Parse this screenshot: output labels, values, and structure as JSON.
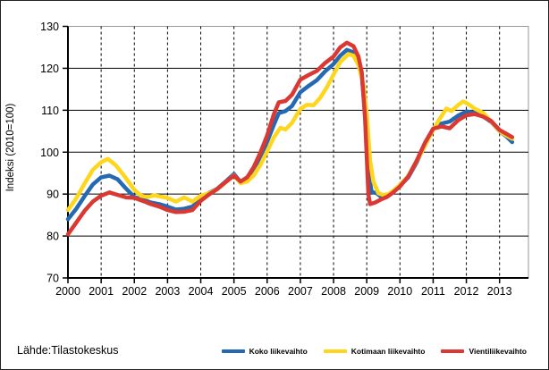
{
  "figure": {
    "source_note": "Lähde:Tilastokeskus"
  },
  "chart_data": {
    "type": "line",
    "title": "",
    "xlabel": "",
    "ylabel": "Indeksi (2010=100)",
    "ylim": [
      70,
      130
    ],
    "ytick_step": 10,
    "xlim": [
      2000,
      2013.87
    ],
    "xticks": [
      2000,
      2001,
      2002,
      2003,
      2004,
      2005,
      2006,
      2007,
      2008,
      2009,
      2010,
      2011,
      2012,
      2013
    ],
    "grid": {
      "horizontal": "solid",
      "vertical": "dashed"
    },
    "legend_position": "bottom-right",
    "series": [
      {
        "name": "Koko liikevaihto",
        "color": "#2569b3",
        "points": [
          [
            2000.0,
            84.0
          ],
          [
            2000.25,
            86.5
          ],
          [
            2000.5,
            89.5
          ],
          [
            2000.75,
            92.3
          ],
          [
            2001.0,
            94.0
          ],
          [
            2001.25,
            94.4
          ],
          [
            2001.5,
            93.5
          ],
          [
            2001.75,
            91.3
          ],
          [
            2002.0,
            89.3
          ],
          [
            2002.25,
            88.7
          ],
          [
            2002.5,
            88.0
          ],
          [
            2002.75,
            87.6
          ],
          [
            2003.0,
            87.0
          ],
          [
            2003.25,
            86.3
          ],
          [
            2003.5,
            86.5
          ],
          [
            2003.75,
            87.0
          ],
          [
            2004.0,
            88.8
          ],
          [
            2004.25,
            90.3
          ],
          [
            2004.5,
            91.3
          ],
          [
            2004.75,
            93.0
          ],
          [
            2005.0,
            94.8
          ],
          [
            2005.2,
            92.8
          ],
          [
            2005.4,
            93.5
          ],
          [
            2005.6,
            95.5
          ],
          [
            2005.8,
            99.0
          ],
          [
            2006.0,
            102.5
          ],
          [
            2006.2,
            106.5
          ],
          [
            2006.35,
            109.3
          ],
          [
            2006.55,
            109.8
          ],
          [
            2006.75,
            111.0
          ],
          [
            2007.0,
            114.3
          ],
          [
            2007.25,
            115.8
          ],
          [
            2007.5,
            117.2
          ],
          [
            2007.75,
            119.3
          ],
          [
            2008.0,
            121.0
          ],
          [
            2008.2,
            123.0
          ],
          [
            2008.4,
            124.4
          ],
          [
            2008.6,
            123.8
          ],
          [
            2008.75,
            121.8
          ],
          [
            2008.85,
            118.5
          ],
          [
            2008.95,
            109.0
          ],
          [
            2009.05,
            95.0
          ],
          [
            2009.15,
            90.5
          ],
          [
            2009.3,
            90.2
          ],
          [
            2009.45,
            89.2
          ],
          [
            2009.6,
            89.4
          ],
          [
            2009.75,
            90.3
          ],
          [
            2010.0,
            92.0
          ],
          [
            2010.25,
            94.0
          ],
          [
            2010.5,
            97.5
          ],
          [
            2010.75,
            101.8
          ],
          [
            2011.0,
            105.5
          ],
          [
            2011.25,
            106.8
          ],
          [
            2011.5,
            107.3
          ],
          [
            2011.75,
            108.7
          ],
          [
            2012.0,
            109.7
          ],
          [
            2012.25,
            109.4
          ],
          [
            2012.5,
            108.6
          ],
          [
            2012.75,
            107.2
          ],
          [
            2013.0,
            105.0
          ],
          [
            2013.2,
            103.8
          ],
          [
            2013.38,
            102.4
          ]
        ]
      },
      {
        "name": "Kotimaan liikevaihto",
        "color": "#fed61e",
        "points": [
          [
            2000.0,
            86.2
          ],
          [
            2000.25,
            89.0
          ],
          [
            2000.5,
            92.5
          ],
          [
            2000.75,
            95.8
          ],
          [
            2001.0,
            97.6
          ],
          [
            2001.2,
            98.4
          ],
          [
            2001.45,
            96.8
          ],
          [
            2001.7,
            94.3
          ],
          [
            2002.0,
            91.0
          ],
          [
            2002.2,
            89.6
          ],
          [
            2002.4,
            89.3
          ],
          [
            2002.6,
            89.7
          ],
          [
            2002.8,
            89.4
          ],
          [
            2003.0,
            89.1
          ],
          [
            2003.25,
            88.2
          ],
          [
            2003.5,
            89.2
          ],
          [
            2003.75,
            88.2
          ],
          [
            2004.0,
            89.6
          ],
          [
            2004.25,
            90.2
          ],
          [
            2004.5,
            91.2
          ],
          [
            2004.75,
            92.8
          ],
          [
            2005.0,
            94.5
          ],
          [
            2005.2,
            92.6
          ],
          [
            2005.4,
            93.0
          ],
          [
            2005.6,
            94.5
          ],
          [
            2005.8,
            97.0
          ],
          [
            2006.0,
            100.2
          ],
          [
            2006.2,
            103.5
          ],
          [
            2006.4,
            105.8
          ],
          [
            2006.55,
            105.4
          ],
          [
            2006.75,
            107.0
          ],
          [
            2007.0,
            110.3
          ],
          [
            2007.2,
            111.3
          ],
          [
            2007.4,
            111.2
          ],
          [
            2007.6,
            113.0
          ],
          [
            2007.8,
            115.5
          ],
          [
            2008.0,
            118.5
          ],
          [
            2008.2,
            121.5
          ],
          [
            2008.45,
            123.4
          ],
          [
            2008.6,
            123.0
          ],
          [
            2008.75,
            120.8
          ],
          [
            2008.9,
            116.0
          ],
          [
            2009.0,
            109.0
          ],
          [
            2009.1,
            98.0
          ],
          [
            2009.2,
            93.0
          ],
          [
            2009.35,
            90.2
          ],
          [
            2009.5,
            89.8
          ],
          [
            2009.65,
            90.0
          ],
          [
            2009.8,
            90.8
          ],
          [
            2010.0,
            92.2
          ],
          [
            2010.25,
            94.3
          ],
          [
            2010.5,
            97.8
          ],
          [
            2010.75,
            101.5
          ],
          [
            2011.0,
            105.3
          ],
          [
            2011.2,
            108.0
          ],
          [
            2011.4,
            110.4
          ],
          [
            2011.55,
            109.8
          ],
          [
            2011.75,
            111.2
          ],
          [
            2011.9,
            112.1
          ],
          [
            2012.05,
            111.5
          ],
          [
            2012.25,
            110.4
          ],
          [
            2012.5,
            109.4
          ],
          [
            2012.75,
            107.3
          ],
          [
            2013.0,
            105.0
          ],
          [
            2013.2,
            104.0
          ],
          [
            2013.38,
            103.2
          ]
        ]
      },
      {
        "name": "Vientiliikevaihto",
        "color": "#da3832",
        "points": [
          [
            2000.0,
            80.4
          ],
          [
            2000.25,
            83.2
          ],
          [
            2000.5,
            86.0
          ],
          [
            2000.75,
            88.2
          ],
          [
            2001.0,
            89.6
          ],
          [
            2001.25,
            90.4
          ],
          [
            2001.5,
            89.8
          ],
          [
            2001.75,
            89.2
          ],
          [
            2002.0,
            89.1
          ],
          [
            2002.25,
            88.4
          ],
          [
            2002.5,
            87.6
          ],
          [
            2002.75,
            87.0
          ],
          [
            2003.0,
            86.2
          ],
          [
            2003.25,
            85.7
          ],
          [
            2003.5,
            85.8
          ],
          [
            2003.75,
            86.2
          ],
          [
            2004.0,
            88.4
          ],
          [
            2004.25,
            89.9
          ],
          [
            2004.5,
            91.2
          ],
          [
            2004.75,
            92.9
          ],
          [
            2005.0,
            94.4
          ],
          [
            2005.2,
            93.0
          ],
          [
            2005.4,
            94.0
          ],
          [
            2005.6,
            96.5
          ],
          [
            2005.8,
            100.0
          ],
          [
            2006.0,
            104.0
          ],
          [
            2006.2,
            109.0
          ],
          [
            2006.35,
            111.9
          ],
          [
            2006.55,
            112.2
          ],
          [
            2006.75,
            113.7
          ],
          [
            2007.0,
            117.3
          ],
          [
            2007.25,
            118.4
          ],
          [
            2007.5,
            119.4
          ],
          [
            2007.75,
            121.3
          ],
          [
            2008.0,
            122.8
          ],
          [
            2008.2,
            125.0
          ],
          [
            2008.4,
            126.1
          ],
          [
            2008.6,
            125.3
          ],
          [
            2008.75,
            122.8
          ],
          [
            2008.85,
            119.0
          ],
          [
            2008.95,
            108.0
          ],
          [
            2009.05,
            90.0
          ],
          [
            2009.1,
            87.6
          ],
          [
            2009.25,
            88.0
          ],
          [
            2009.45,
            88.8
          ],
          [
            2009.6,
            89.3
          ],
          [
            2009.75,
            90.1
          ],
          [
            2010.0,
            91.8
          ],
          [
            2010.25,
            94.2
          ],
          [
            2010.5,
            97.9
          ],
          [
            2010.75,
            102.2
          ],
          [
            2011.0,
            105.6
          ],
          [
            2011.25,
            106.1
          ],
          [
            2011.5,
            105.7
          ],
          [
            2011.75,
            107.6
          ],
          [
            2012.0,
            108.8
          ],
          [
            2012.25,
            109.1
          ],
          [
            2012.5,
            108.5
          ],
          [
            2012.75,
            107.4
          ],
          [
            2013.0,
            105.3
          ],
          [
            2013.2,
            104.4
          ],
          [
            2013.38,
            103.6
          ]
        ]
      }
    ]
  }
}
